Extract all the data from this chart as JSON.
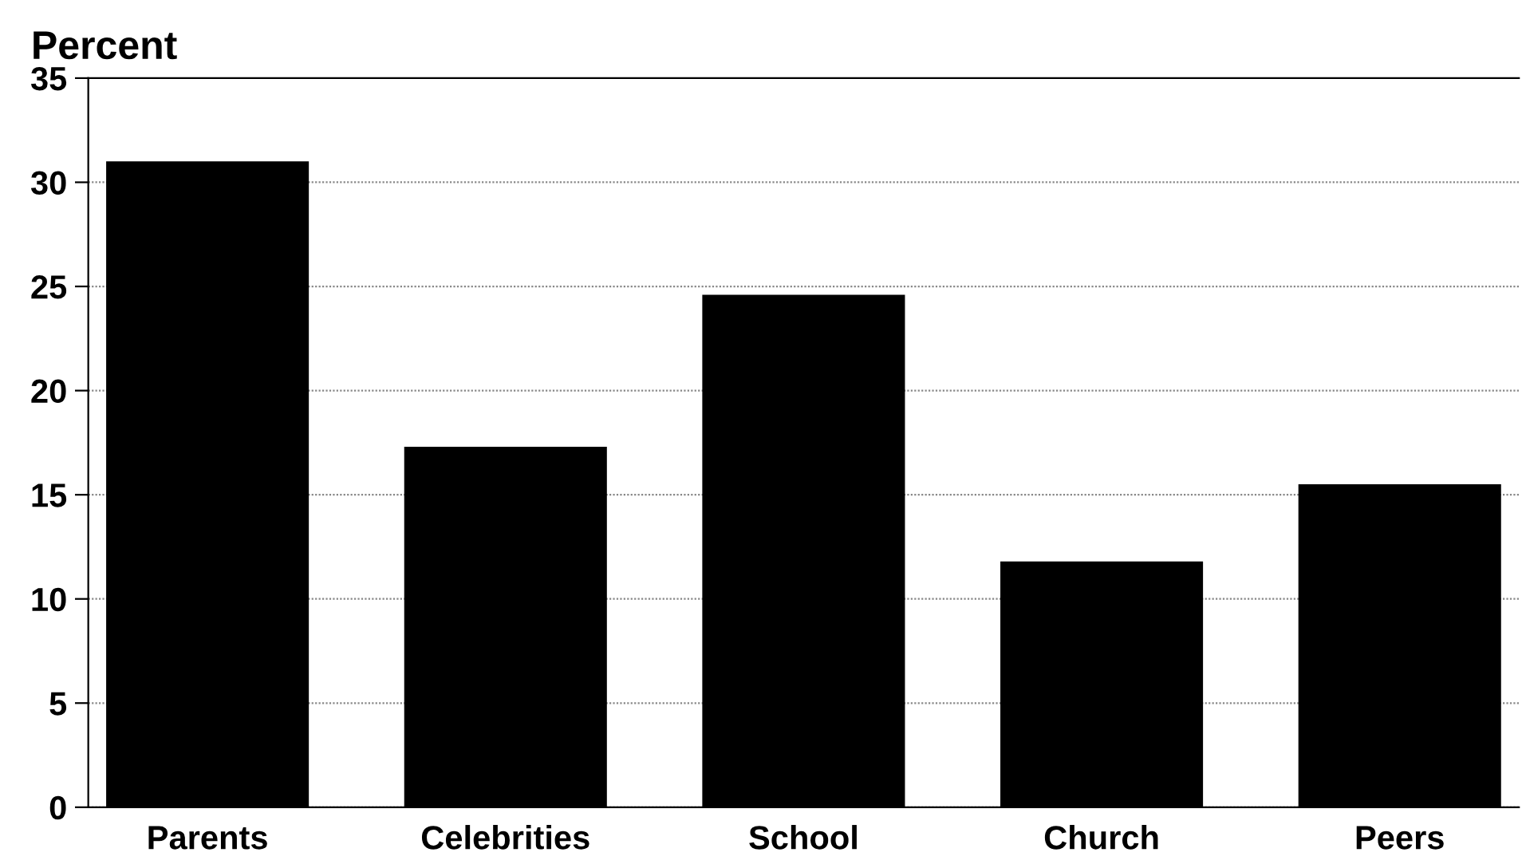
{
  "chart_data": {
    "type": "bar",
    "ylabel": "Percent",
    "categories": [
      "Parents",
      "Celebrities",
      "School",
      "Church",
      "Peers"
    ],
    "values": [
      31,
      17.3,
      24.6,
      11.8,
      15.5
    ],
    "color": "#000000",
    "ylim": [
      0,
      35
    ],
    "yticks": [
      0,
      5,
      10,
      15,
      20,
      25,
      30,
      35
    ],
    "grid": "y"
  }
}
